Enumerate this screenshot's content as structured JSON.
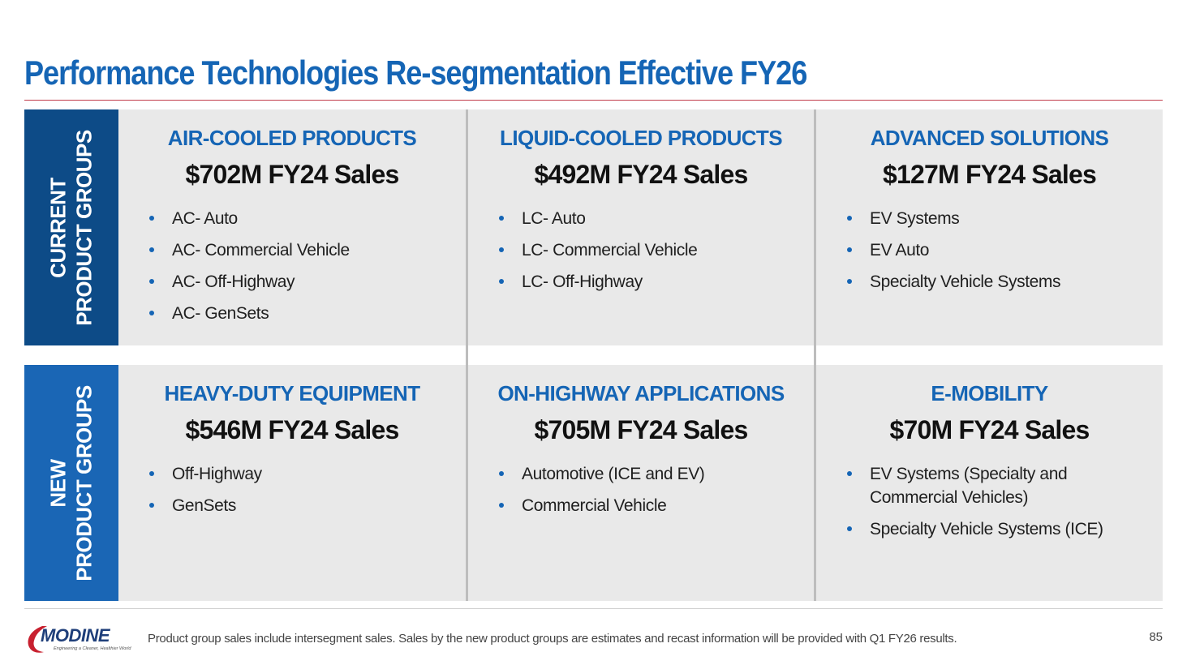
{
  "title": "Performance Technologies Re-segmentation Effective FY26",
  "rows": {
    "current": {
      "label_line1": "CURRENT",
      "label_line2": "PRODUCT GROUPS",
      "cells": [
        {
          "title": "AIR-COOLED PRODUCTS",
          "sales": "$702M FY24 Sales",
          "items": [
            "AC- Auto",
            "AC- Commercial Vehicle",
            "AC- Off-Highway",
            "AC- GenSets"
          ]
        },
        {
          "title": "LIQUID-COOLED PRODUCTS",
          "sales": "$492M FY24 Sales",
          "items": [
            "LC- Auto",
            "LC- Commercial Vehicle",
            "LC- Off-Highway"
          ]
        },
        {
          "title": "ADVANCED SOLUTIONS",
          "sales": "$127M FY24 Sales",
          "items": [
            "EV Systems",
            "EV Auto",
            "Specialty Vehicle Systems"
          ]
        }
      ]
    },
    "new": {
      "label_line1": "NEW",
      "label_line2": "PRODUCT GROUPS",
      "cells": [
        {
          "title": "HEAVY-DUTY EQUIPMENT",
          "sales": "$546M FY24 Sales",
          "items": [
            "Off-Highway",
            "GenSets"
          ]
        },
        {
          "title": "ON-HIGHWAY APPLICATIONS",
          "sales": "$705M FY24 Sales",
          "items": [
            "Automotive (ICE and EV)",
            "Commercial Vehicle"
          ]
        },
        {
          "title": "E-MOBILITY",
          "sales": "$70M FY24 Sales",
          "items": [
            "EV Systems (Specialty and Commercial Vehicles)",
            "Specialty Vehicle Systems (ICE)"
          ]
        }
      ]
    }
  },
  "footer": {
    "logo_text": "MODINE",
    "logo_tagline": "Engineering a Cleaner, Healthier World",
    "note": "Product group sales include intersegment sales.  Sales by the new product groups are estimates and recast information will be provided with Q1 FY26 results.",
    "page_number": "85"
  },
  "colors": {
    "title_blue": "#1565b5",
    "current_label_bg": "#0d4b87",
    "new_label_bg": "#1a66b5",
    "panel_bg": "#e9e9e9",
    "rule_red": "#c23b4a",
    "logo_red": "#c8202f"
  }
}
